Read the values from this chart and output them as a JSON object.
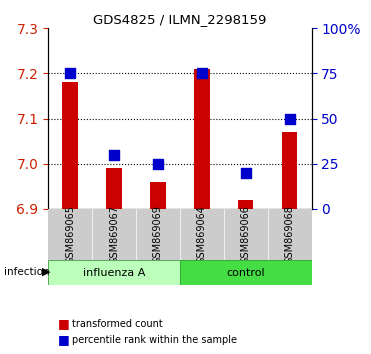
{
  "title": "GDS4825 / ILMN_2298159",
  "categories": [
    "GSM869065",
    "GSM869067",
    "GSM869069",
    "GSM869064",
    "GSM869066",
    "GSM869068"
  ],
  "red_values": [
    7.18,
    6.99,
    6.96,
    7.21,
    6.92,
    7.07
  ],
  "blue_values": [
    75,
    30,
    25,
    75,
    20,
    50
  ],
  "ylim_left": [
    6.9,
    7.3
  ],
  "ylim_right": [
    0,
    100
  ],
  "yticks_left": [
    6.9,
    7.0,
    7.1,
    7.2,
    7.3
  ],
  "yticks_right": [
    0,
    25,
    50,
    75,
    100
  ],
  "group_labels": [
    "influenza A",
    "control"
  ],
  "infection_label": "infection",
  "bar_color": "#cc0000",
  "dot_color": "#0000cc",
  "bar_width": 0.35,
  "dot_size": 45,
  "legend_items": [
    "transformed count",
    "percentile rank within the sample"
  ],
  "plot_bg": "#ffffff",
  "axis_label_color_left": "#cc2200",
  "axis_label_color_right": "#0000cc",
  "group1_color": "#bbffbb",
  "group2_color": "#44dd44",
  "xlab_bg": "#cccccc"
}
